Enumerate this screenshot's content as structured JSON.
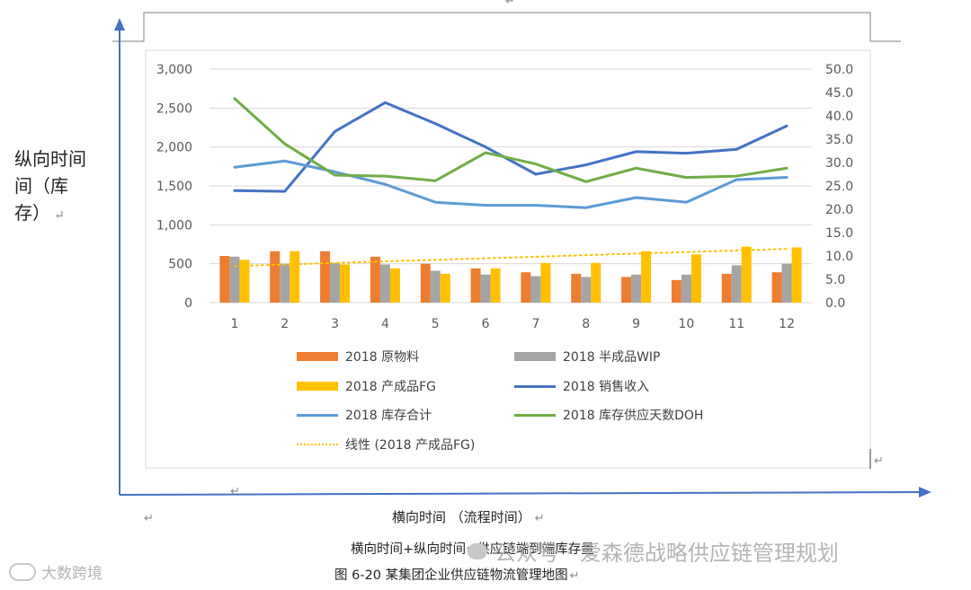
{
  "page": {
    "vertical_axis_label": "纵向时间（库存）",
    "vertical_axis_lines": [
      "纵向时间",
      "间（库",
      "存）"
    ],
    "horizontal_axis_label": "横向时间 （流程时间）",
    "formula": "横向时间+纵向时间=供应链端到端库存量",
    "figure_caption": "图 6-20 某集团企业供应链物流管理地图",
    "return_mark": "↵",
    "watermark_right": "公众号 · 爱森德战略供应链管理规划",
    "watermark_left": "大数跨境"
  },
  "colors": {
    "raw_material": "#ED7D31",
    "wip": "#A5A5A5",
    "fg": "#FFC000",
    "sales": "#4472C4",
    "inventory": "#5B9BD5",
    "doh": "#70AD47",
    "axis_arrow": "#4472C4",
    "grid": "#D9D9D9"
  },
  "chart_data": {
    "type": "bar",
    "categories": [
      "1",
      "2",
      "3",
      "4",
      "5",
      "6",
      "7",
      "8",
      "9",
      "10",
      "11",
      "12"
    ],
    "left_axis": {
      "min": 0,
      "max": 3000,
      "ticks": [
        "0",
        "500",
        "1,000",
        "1,500",
        "2,000",
        "2,500",
        "3,000"
      ],
      "tick_values": [
        0,
        500,
        1000,
        1500,
        2000,
        2500,
        3000
      ]
    },
    "right_axis": {
      "min": 0,
      "max": 50,
      "ticks": [
        "0.0",
        "5.0",
        "10.0",
        "15.0",
        "20.0",
        "25.0",
        "30.0",
        "35.0",
        "40.0",
        "45.0",
        "50.0"
      ],
      "tick_values": [
        0,
        5,
        10,
        15,
        20,
        25,
        30,
        35,
        40,
        45,
        50
      ]
    },
    "grid": true,
    "series": [
      {
        "name": "2018 原物料",
        "kind": "bar",
        "axis": "left",
        "color": "#ED7D31",
        "values": [
          600,
          660,
          660,
          590,
          500,
          440,
          390,
          370,
          330,
          290,
          370,
          390
        ]
      },
      {
        "name": "2018 半成品WIP",
        "kind": "bar",
        "axis": "left",
        "color": "#A5A5A5",
        "values": [
          590,
          500,
          510,
          490,
          410,
          360,
          340,
          330,
          360,
          360,
          480,
          500
        ]
      },
      {
        "name": "2018 产成品FG",
        "kind": "bar",
        "axis": "left",
        "color": "#FFC000",
        "values": [
          550,
          660,
          490,
          440,
          370,
          440,
          510,
          510,
          660,
          620,
          720,
          710
        ]
      },
      {
        "name": "2018 销售收入",
        "kind": "line",
        "axis": "left",
        "color": "#4472C4",
        "values": [
          1440,
          1430,
          2200,
          2570,
          2300,
          2000,
          1650,
          1770,
          1940,
          1920,
          1970,
          2270
        ]
      },
      {
        "name": "2018 库存合计",
        "kind": "line",
        "axis": "left",
        "color": "#5B9BD5",
        "values": [
          1740,
          1820,
          1680,
          1520,
          1290,
          1250,
          1250,
          1220,
          1350,
          1290,
          1580,
          1610
        ]
      },
      {
        "name": "2018 库存供应天数DOH",
        "kind": "line",
        "axis": "right",
        "color": "#70AD47",
        "values": [
          43.7,
          34.0,
          27.3,
          27.1,
          26.1,
          32.1,
          29.7,
          25.9,
          28.8,
          26.8,
          27.1,
          28.8
        ]
      },
      {
        "name": "线性 (2018 产成品FG)",
        "kind": "trend",
        "axis": "left",
        "color": "#FFC000",
        "values": [
          470,
          490,
          510,
          530,
          550,
          570,
          590,
          610,
          630,
          650,
          670,
          690
        ]
      }
    ],
    "legend": [
      {
        "label": "2018 原物料",
        "kind": "bar",
        "color": "#ED7D31"
      },
      {
        "label": "2018 半成品WIP",
        "kind": "bar",
        "color": "#A5A5A5"
      },
      {
        "label": "2018 产成品FG",
        "kind": "bar",
        "color": "#FFC000"
      },
      {
        "label": "2018 销售收入",
        "kind": "line",
        "color": "#4472C4"
      },
      {
        "label": "2018 库存合计",
        "kind": "line",
        "color": "#5B9BD5"
      },
      {
        "label": "2018 库存供应天数DOH",
        "kind": "line",
        "color": "#70AD47"
      },
      {
        "label": "线性 (2018 产成品FG)",
        "kind": "dotted",
        "color": "#FFC000"
      }
    ],
    "legend_position": "bottom"
  }
}
